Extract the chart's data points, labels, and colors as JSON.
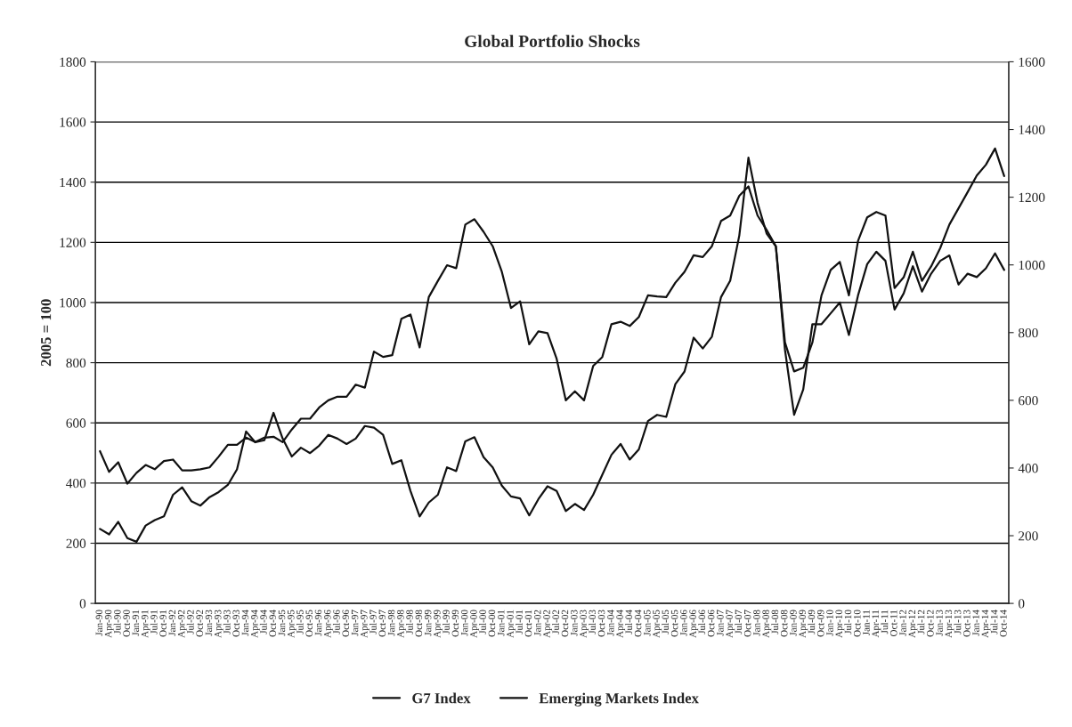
{
  "chart_data": {
    "type": "line",
    "title": "Global Portfolio Shocks",
    "ylabel": "2005 = 100",
    "categories": [
      "Jan-90",
      "Apr-90",
      "Jul-90",
      "Oct-90",
      "Jan-91",
      "Apr-91",
      "Jul-91",
      "Oct-91",
      "Jan-92",
      "Apr-92",
      "Jul-92",
      "Oct-92",
      "Jan-93",
      "Apr-93",
      "Jul-93",
      "Oct-93",
      "Jan-94",
      "Apr-94",
      "Jul-94",
      "Oct-94",
      "Jan-95",
      "Apr-95",
      "Jul-95",
      "Oct-95",
      "Jan-96",
      "Apr-96",
      "Jul-96",
      "Oct-96",
      "Jan-97",
      "Apr-97",
      "Jul-97",
      "Oct-97",
      "Jan-98",
      "Apr-98",
      "Jul-98",
      "Oct-98",
      "Jan-99",
      "Apr-99",
      "Jul-99",
      "Oct-99",
      "Jan-00",
      "Apr-00",
      "Jul-00",
      "Oct-00",
      "Jan-01",
      "Apr-01",
      "Jul-01",
      "Oct-01",
      "Jan-02",
      "Apr-02",
      "Jul-02",
      "Oct-02",
      "Jan-03",
      "Apr-03",
      "Jul-03",
      "Oct-03",
      "Jan-04",
      "Apr-04",
      "Jul-04",
      "Oct-04",
      "Jan-05",
      "Apr-05",
      "Jul-05",
      "Oct-05",
      "Jan-06",
      "Apr-06",
      "Jul-06",
      "Oct-06",
      "Jan-07",
      "Apr-07",
      "Jul-07",
      "Oct-07",
      "Jan-08",
      "Apr-08",
      "Jul-08",
      "Oct-08",
      "Jan-09",
      "Apr-09",
      "Jul-09",
      "Oct-09",
      "Jan-10",
      "Apr-10",
      "Jul-10",
      "Oct-10",
      "Jan-11",
      "Apr-11",
      "Jul-11",
      "Oct-11",
      "Jan-12",
      "Apr-12",
      "Jul-12",
      "Oct-12",
      "Jan-13",
      "Apr-13",
      "Jul-13",
      "Oct-13",
      "Jan-14",
      "Apr-14",
      "Jul-14",
      "Oct-14"
    ],
    "series": [
      {
        "name": "G7 Index",
        "color": "#111111",
        "values": [
          506,
          437,
          469,
          398,
          434,
          460,
          446,
          473,
          478,
          442,
          442,
          446,
          452,
          488,
          527,
          527,
          551,
          536,
          551,
          554,
          536,
          578,
          614,
          614,
          651,
          675,
          687,
          687,
          727,
          717,
          837,
          819,
          825,
          946,
          960,
          851,
          1018,
          1072,
          1124,
          1114,
          1259,
          1277,
          1235,
          1187,
          1102,
          982,
          1004,
          861,
          904,
          898,
          813,
          675,
          705,
          675,
          789,
          819,
          928,
          936,
          922,
          952,
          1024,
          1020,
          1018,
          1066,
          1102,
          1157,
          1151,
          1187,
          1271,
          1289,
          1355,
          1386,
          1289,
          1241,
          1187,
          867,
          771,
          783,
          867,
          1024,
          1108,
          1135,
          1024,
          1205,
          1283,
          1301,
          1289,
          1048,
          1084,
          1169,
          1072,
          1120,
          1181,
          1259,
          1313,
          1367,
          1422,
          1458,
          1512,
          1420
        ]
      },
      {
        "name": "Emerging Markets Index",
        "color": "#111111",
        "axis": "y2",
        "values": [
          220,
          204,
          241,
          193,
          182,
          230,
          246,
          257,
          321,
          343,
          302,
          289,
          314,
          329,
          350,
          396,
          508,
          476,
          482,
          563,
          487,
          434,
          460,
          444,
          466,
          498,
          487,
          471,
          487,
          524,
          519,
          498,
          412,
          423,
          332,
          257,
          298,
          321,
          402,
          391,
          479,
          491,
          432,
          402,
          348,
          316,
          310,
          260,
          308,
          346,
          332,
          273,
          294,
          276,
          321,
          380,
          439,
          471,
          425,
          455,
          539,
          557,
          551,
          648,
          685,
          785,
          753,
          788,
          905,
          953,
          1087,
          1317,
          1183,
          1092,
          1055,
          749,
          557,
          632,
          825,
          825,
          857,
          889,
          793,
          910,
          1002,
          1039,
          1012,
          868,
          916,
          996,
          921,
          974,
          1012,
          1028,
          942,
          974,
          964,
          990,
          1034,
          985
        ]
      }
    ],
    "ylim": [
      0,
      1800
    ],
    "yticks": [
      0,
      200,
      400,
      600,
      800,
      1000,
      1200,
      1400,
      1600,
      1800
    ],
    "y2lim": [
      0,
      1600
    ],
    "y2ticks": [
      0,
      200,
      400,
      600,
      800,
      1000,
      1200,
      1400,
      1600
    ],
    "grid": "y",
    "legend": "bottom",
    "marker": "none",
    "line_style": "solid"
  }
}
